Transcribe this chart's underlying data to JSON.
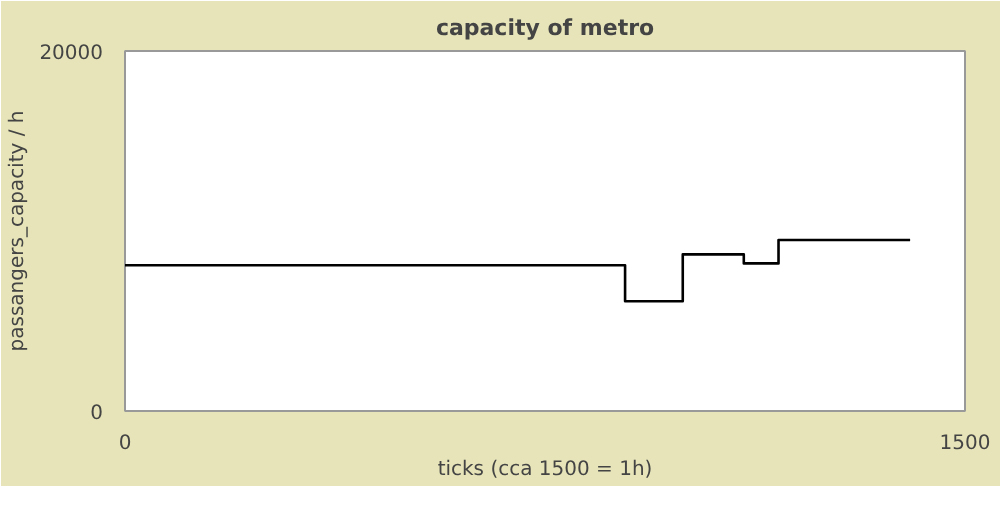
{
  "chart_data": {
    "type": "line",
    "title": "capacity of metro",
    "xlabel": "ticks (cca 1500 = 1h)",
    "ylabel": "passangers_capacity / h",
    "x": [
      0,
      893,
      893,
      996,
      996,
      1105,
      1105,
      1167,
      1167,
      1402
    ],
    "series": [
      {
        "color": "#000000",
        "values": [
          8100,
          8100,
          6100,
          6100,
          8700,
          8700,
          8200,
          8200,
          9500,
          9500
        ]
      }
    ],
    "xlim": [
      0,
      1500
    ],
    "ylim": [
      0,
      20000
    ],
    "xticks": [
      0,
      1500
    ],
    "yticks": [
      0,
      20000
    ]
  }
}
